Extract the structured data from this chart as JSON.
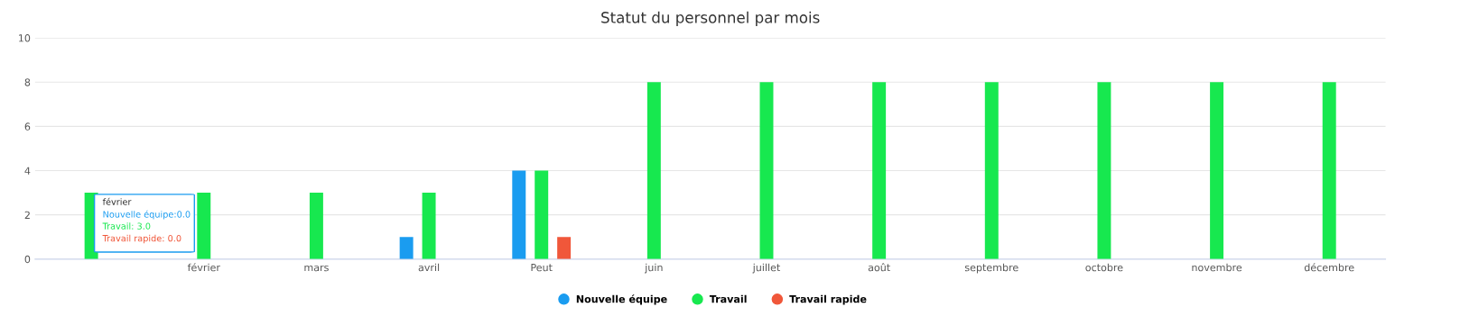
{
  "chart_data": {
    "type": "bar",
    "title": "Statut du personnel par mois",
    "categories": [
      null,
      "février",
      "mars",
      "avril",
      "Peut",
      "juin",
      "juillet",
      "août",
      "septembre",
      "octobre",
      "novembre",
      "décembre"
    ],
    "series": [
      {
        "name": "Nouvelle équipe",
        "color": "#1a9cf0",
        "values": [
          0,
          0,
          0,
          1,
          4,
          0,
          0,
          0,
          0,
          0,
          0,
          0
        ]
      },
      {
        "name": "Travail",
        "color": "#17e84f",
        "values": [
          3,
          3,
          3,
          3,
          4,
          8,
          8,
          8,
          8,
          8,
          8,
          8
        ]
      },
      {
        "name": "Travail rapide",
        "color": "#f0573a",
        "values": [
          0,
          0,
          0,
          0,
          1,
          0,
          0,
          0,
          0,
          0,
          0,
          0
        ]
      }
    ],
    "ylim": [
      0,
      10
    ],
    "yticks": [
      0,
      2,
      4,
      6,
      8,
      10
    ],
    "grid": "y",
    "legend": "bottom",
    "annotations": [
      "février",
      "Nouvelle équipe:0.0",
      "Travail: 3.0",
      "Travail rapide: 0.0"
    ]
  }
}
